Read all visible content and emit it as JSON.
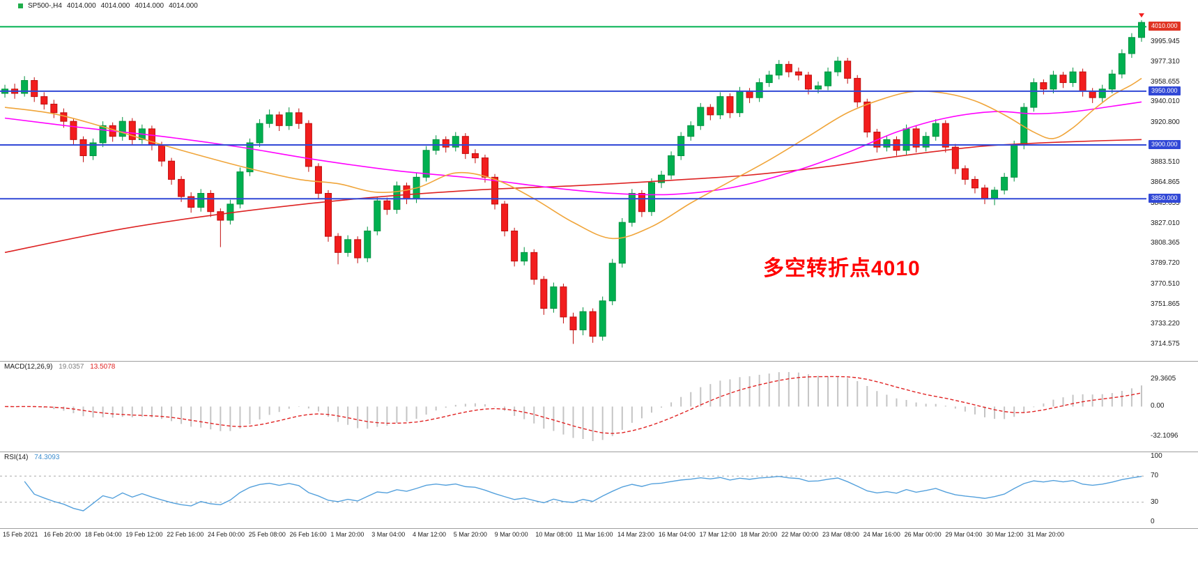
{
  "quote": {
    "symbol_tf": "SP500-,H4",
    "open": "4014.000",
    "high": "4014.000",
    "low": "4014.000",
    "close": "4014.000"
  },
  "colors": {
    "up": "#00b050",
    "up_stroke": "#00913f",
    "down": "#f21d1d",
    "down_stroke": "#c00d0d",
    "ma_fast": "#f0a53a",
    "ma_mid": "#ff00ff",
    "ma_slow": "#dd2222",
    "hline_blue": "#3148d6",
    "hline_green": "#00b050",
    "tag_blue": "#3148d6",
    "tag_red": "#e03423",
    "macd_hist": "#c4c4c4",
    "macd_signal": "#e02222",
    "macd_value_main": "#7f7f7f",
    "macd_value_signal": "#e02222",
    "rsi_line": "#53a0dc",
    "rsi_value": "#3f8fd0",
    "level_dash": "#a8a8a8",
    "annotation": "#ff0000",
    "axis_text": "#1a1a1a",
    "separator": "#9e9e9e",
    "bullet": "#1fae4b"
  },
  "chart_data": {
    "type": "candlestick",
    "symbol": "SP500-",
    "timeframe": "H4",
    "ylim": [
      3703,
      4018
    ],
    "candles": [
      [
        3948,
        3956,
        3944,
        3952
      ],
      [
        3952,
        3957,
        3943,
        3948
      ],
      [
        3948,
        3964,
        3945,
        3960
      ],
      [
        3960,
        3963,
        3940,
        3945
      ],
      [
        3945,
        3949,
        3933,
        3938
      ],
      [
        3938,
        3942,
        3925,
        3930
      ],
      [
        3930,
        3934,
        3916,
        3922
      ],
      [
        3922,
        3925,
        3900,
        3905
      ],
      [
        3905,
        3908,
        3884,
        3890
      ],
      [
        3890,
        3906,
        3886,
        3902
      ],
      [
        3902,
        3922,
        3898,
        3918
      ],
      [
        3918,
        3921,
        3903,
        3908
      ],
      [
        3908,
        3926,
        3904,
        3922
      ],
      [
        3922,
        3925,
        3900,
        3905
      ],
      [
        3905,
        3919,
        3901,
        3915
      ],
      [
        3915,
        3918,
        3895,
        3900
      ],
      [
        3900,
        3903,
        3880,
        3885
      ],
      [
        3885,
        3888,
        3863,
        3868
      ],
      [
        3868,
        3871,
        3847,
        3852
      ],
      [
        3852,
        3856,
        3837,
        3842
      ],
      [
        3842,
        3859,
        3838,
        3855
      ],
      [
        3855,
        3858,
        3833,
        3838
      ],
      [
        3838,
        3841,
        3805,
        3830
      ],
      [
        3830,
        3849,
        3826,
        3845
      ],
      [
        3845,
        3879,
        3841,
        3875
      ],
      [
        3875,
        3906,
        3871,
        3902
      ],
      [
        3902,
        3924,
        3898,
        3920
      ],
      [
        3920,
        3933,
        3916,
        3928
      ],
      [
        3928,
        3931,
        3913,
        3918
      ],
      [
        3918,
        3935,
        3914,
        3930
      ],
      [
        3930,
        3934,
        3915,
        3920
      ],
      [
        3920,
        3923,
        3875,
        3880
      ],
      [
        3880,
        3883,
        3850,
        3855
      ],
      [
        3855,
        3858,
        3810,
        3815
      ],
      [
        3815,
        3818,
        3789,
        3800
      ],
      [
        3800,
        3816,
        3796,
        3812
      ],
      [
        3812,
        3815,
        3790,
        3795
      ],
      [
        3795,
        3824,
        3791,
        3820
      ],
      [
        3820,
        3852,
        3816,
        3848
      ],
      [
        3848,
        3851,
        3835,
        3840
      ],
      [
        3840,
        3866,
        3836,
        3862
      ],
      [
        3862,
        3865,
        3845,
        3850
      ],
      [
        3850,
        3874,
        3846,
        3870
      ],
      [
        3870,
        3899,
        3866,
        3895
      ],
      [
        3895,
        3909,
        3891,
        3905
      ],
      [
        3905,
        3908,
        3893,
        3898
      ],
      [
        3898,
        3912,
        3894,
        3908
      ],
      [
        3908,
        3911,
        3887,
        3892
      ],
      [
        3892,
        3896,
        3883,
        3888
      ],
      [
        3888,
        3891,
        3865,
        3870
      ],
      [
        3870,
        3873,
        3840,
        3845
      ],
      [
        3845,
        3848,
        3815,
        3820
      ],
      [
        3820,
        3823,
        3787,
        3792
      ],
      [
        3792,
        3805,
        3788,
        3800
      ],
      [
        3800,
        3803,
        3770,
        3775
      ],
      [
        3775,
        3778,
        3742,
        3748
      ],
      [
        3748,
        3772,
        3744,
        3768
      ],
      [
        3768,
        3771,
        3734,
        3740
      ],
      [
        3740,
        3744,
        3715,
        3728
      ],
      [
        3728,
        3749,
        3723,
        3745
      ],
      [
        3745,
        3748,
        3716,
        3722
      ],
      [
        3722,
        3759,
        3718,
        3755
      ],
      [
        3755,
        3794,
        3751,
        3790
      ],
      [
        3790,
        3832,
        3786,
        3828
      ],
      [
        3828,
        3859,
        3824,
        3855
      ],
      [
        3855,
        3858,
        3833,
        3838
      ],
      [
        3838,
        3869,
        3834,
        3865
      ],
      [
        3865,
        3876,
        3860,
        3872
      ],
      [
        3872,
        3894,
        3868,
        3890
      ],
      [
        3890,
        3912,
        3886,
        3908
      ],
      [
        3908,
        3922,
        3904,
        3918
      ],
      [
        3918,
        3939,
        3914,
        3935
      ],
      [
        3935,
        3938,
        3923,
        3928
      ],
      [
        3928,
        3949,
        3924,
        3945
      ],
      [
        3945,
        3948,
        3925,
        3930
      ],
      [
        3930,
        3954,
        3926,
        3950
      ],
      [
        3950,
        3953,
        3939,
        3944
      ],
      [
        3944,
        3962,
        3940,
        3958
      ],
      [
        3958,
        3969,
        3954,
        3965
      ],
      [
        3965,
        3979,
        3961,
        3975
      ],
      [
        3975,
        3978,
        3963,
        3968
      ],
      [
        3968,
        3972,
        3960,
        3965
      ],
      [
        3965,
        3968,
        3947,
        3952
      ],
      [
        3952,
        3959,
        3948,
        3955
      ],
      [
        3955,
        3972,
        3951,
        3968
      ],
      [
        3968,
        3982,
        3964,
        3978
      ],
      [
        3978,
        3981,
        3957,
        3962
      ],
      [
        3962,
        3965,
        3935,
        3940
      ],
      [
        3940,
        3943,
        3907,
        3912
      ],
      [
        3912,
        3915,
        3893,
        3898
      ],
      [
        3898,
        3909,
        3894,
        3905
      ],
      [
        3905,
        3908,
        3890,
        3895
      ],
      [
        3895,
        3919,
        3891,
        3915
      ],
      [
        3915,
        3918,
        3893,
        3898
      ],
      [
        3898,
        3912,
        3894,
        3908
      ],
      [
        3908,
        3924,
        3904,
        3920
      ],
      [
        3920,
        3923,
        3893,
        3898
      ],
      [
        3898,
        3901,
        3873,
        3878
      ],
      [
        3878,
        3881,
        3863,
        3868
      ],
      [
        3868,
        3871,
        3855,
        3860
      ],
      [
        3860,
        3863,
        3845,
        3850
      ],
      [
        3850,
        3861,
        3844,
        3858
      ],
      [
        3858,
        3874,
        3854,
        3870
      ],
      [
        3870,
        3904,
        3866,
        3900
      ],
      [
        3900,
        3939,
        3896,
        3935
      ],
      [
        3935,
        3962,
        3931,
        3958
      ],
      [
        3958,
        3961,
        3947,
        3952
      ],
      [
        3952,
        3969,
        3948,
        3965
      ],
      [
        3965,
        3968,
        3953,
        3958
      ],
      [
        3958,
        3972,
        3954,
        3968
      ],
      [
        3968,
        3971,
        3945,
        3950
      ],
      [
        3950,
        3953,
        3939,
        3944
      ],
      [
        3944,
        3956,
        3940,
        3952
      ],
      [
        3952,
        3970,
        3948,
        3966
      ],
      [
        3966,
        3989,
        3962,
        3985
      ],
      [
        3985,
        4004,
        3981,
        4000
      ],
      [
        4000,
        4016,
        3996,
        4014
      ]
    ],
    "price_lines": [
      {
        "price": 4010.0,
        "label": "4010.000",
        "line": "green",
        "tag": "red"
      },
      {
        "price": 3950.0,
        "label": "3950.000",
        "line": "blue",
        "tag": "blue"
      },
      {
        "price": 3900.0,
        "label": "3900.000",
        "line": "blue",
        "tag": "blue"
      },
      {
        "price": 3850.0,
        "label": "3850.000",
        "line": "blue",
        "tag": "blue"
      }
    ],
    "y_axis_labels": [
      "3995.945",
      "3977.310",
      "3958.655",
      "3940.010",
      "3920.800",
      "3883.510",
      "3864.865",
      "3845.655",
      "3827.010",
      "3808.365",
      "3789.720",
      "3770.510",
      "3751.865",
      "3733.220",
      "3714.575"
    ],
    "time_labels": [
      "15 Feb 2021",
      "16 Feb 20:00",
      "18 Feb 04:00",
      "19 Feb 12:00",
      "22 Feb 16:00",
      "24 Feb 00:00",
      "25 Feb 08:00",
      "26 Feb 16:00",
      "1 Mar 20:00",
      "3 Mar 04:00",
      "4 Mar 12:00",
      "5 Mar 20:00",
      "9 Mar 00:00",
      "10 Mar 08:00",
      "11 Mar 16:00",
      "14 Mar 23:00",
      "16 Mar 04:00",
      "17 Mar 12:00",
      "18 Mar 20:00",
      "22 Mar 00:00",
      "23 Mar 08:00",
      "24 Mar 16:00",
      "26 Mar 00:00",
      "29 Mar 04:00",
      "30 Mar 12:00",
      "31 Mar 20:00"
    ],
    "moving_averages": [
      {
        "name": "ma-slow",
        "color_key": "ma_slow",
        "points": [
          [
            0,
            3800
          ],
          [
            12,
            3822
          ],
          [
            24,
            3838
          ],
          [
            36,
            3850
          ],
          [
            48,
            3858
          ],
          [
            58,
            3862
          ],
          [
            66,
            3866
          ],
          [
            76,
            3872
          ],
          [
            84,
            3880
          ],
          [
            90,
            3888
          ],
          [
            95,
            3894
          ],
          [
            100,
            3899
          ],
          [
            106,
            3902
          ],
          [
            112,
            3904
          ],
          [
            116,
            3905
          ]
        ]
      },
      {
        "name": "ma-mid",
        "color_key": "ma_mid",
        "points": [
          [
            0,
            3925
          ],
          [
            8,
            3916
          ],
          [
            16,
            3908
          ],
          [
            24,
            3898
          ],
          [
            32,
            3886
          ],
          [
            40,
            3876
          ],
          [
            48,
            3869
          ],
          [
            56,
            3860
          ],
          [
            62,
            3855
          ],
          [
            68,
            3854
          ],
          [
            74,
            3860
          ],
          [
            80,
            3874
          ],
          [
            86,
            3893
          ],
          [
            91,
            3912
          ],
          [
            96,
            3925
          ],
          [
            101,
            3931
          ],
          [
            105,
            3929
          ],
          [
            109,
            3931
          ],
          [
            113,
            3936
          ],
          [
            116,
            3940
          ]
        ]
      },
      {
        "name": "ma-fast",
        "color_key": "ma_fast",
        "points": [
          [
            0,
            3935
          ],
          [
            5,
            3929
          ],
          [
            10,
            3917
          ],
          [
            15,
            3903
          ],
          [
            20,
            3890
          ],
          [
            25,
            3878
          ],
          [
            30,
            3868
          ],
          [
            34,
            3864
          ],
          [
            38,
            3856
          ],
          [
            42,
            3860
          ],
          [
            46,
            3874
          ],
          [
            50,
            3868
          ],
          [
            54,
            3850
          ],
          [
            58,
            3828
          ],
          [
            62,
            3813
          ],
          [
            66,
            3824
          ],
          [
            70,
            3846
          ],
          [
            74,
            3866
          ],
          [
            78,
            3886
          ],
          [
            82,
            3908
          ],
          [
            86,
            3930
          ],
          [
            90,
            3944
          ],
          [
            93,
            3950
          ],
          [
            96,
            3948
          ],
          [
            99,
            3941
          ],
          [
            102,
            3928
          ],
          [
            105,
            3912
          ],
          [
            107,
            3906
          ],
          [
            109,
            3916
          ],
          [
            111,
            3932
          ],
          [
            113,
            3946
          ],
          [
            115,
            3956
          ],
          [
            116,
            3962
          ]
        ]
      }
    ],
    "marker": {
      "bar_index": 116,
      "shape": "triangle-down"
    },
    "annotation": {
      "text": "多空转折点4010"
    },
    "macd": {
      "label": "MACD(12,26,9)",
      "main_value": "19.0357",
      "signal_value": "13.5078",
      "fast": 12,
      "slow": 26,
      "signal": 9,
      "axis": [
        "29.3605",
        "0.00",
        "-32.1096"
      ]
    },
    "rsi": {
      "label": "RSI(14)",
      "value": "74.3093",
      "period": 14,
      "levels": [
        70,
        30
      ],
      "axis": [
        "100",
        "70",
        "30",
        "0"
      ]
    }
  }
}
